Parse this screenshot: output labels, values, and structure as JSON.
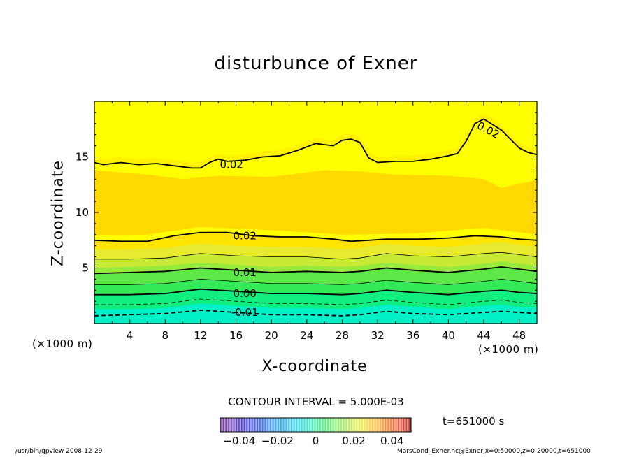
{
  "chart_data": {
    "type": "contour",
    "title": "disturbunce of Exner",
    "xlabel": "X-coordinate",
    "ylabel": "Z-coordinate",
    "x_unit": "(×1000 m)",
    "y_unit": "(×1000 m)",
    "xlim": [
      0,
      50
    ],
    "ylim": [
      0,
      20
    ],
    "x_ticks": [
      4,
      8,
      12,
      16,
      20,
      24,
      28,
      32,
      36,
      40,
      44,
      48
    ],
    "y_ticks": [
      5,
      10,
      15
    ],
    "contour_interval_text": "CONTOUR INTERVAL = 5.000E-03",
    "contour_labels": [
      {
        "text": "0.02",
        "x": 44.5,
        "z": 17.4
      },
      {
        "text": "0.02",
        "x": 15.5,
        "z": 14.3
      },
      {
        "text": "0.02",
        "x": 17.0,
        "z": 7.9
      },
      {
        "text": "0.01",
        "x": 17.0,
        "z": 4.6
      },
      {
        "text": "0.00",
        "x": 17.0,
        "z": 2.7
      },
      {
        "text": "-0.01",
        "x": 17.0,
        "z": 1.0
      }
    ],
    "contours": [
      {
        "level": 0.02,
        "style": "solid-thick",
        "x": [
          0,
          1,
          3,
          5,
          7,
          9,
          11,
          12,
          13,
          14,
          15,
          17,
          19,
          21,
          23,
          24,
          25,
          26,
          27,
          28,
          29,
          30,
          31,
          32,
          34,
          36,
          38,
          40,
          41,
          42,
          43,
          44,
          45,
          46,
          47,
          48,
          49,
          50
        ],
        "z": [
          14.5,
          14.3,
          14.5,
          14.3,
          14.4,
          14.2,
          14.0,
          14.0,
          14.5,
          14.8,
          14.6,
          14.7,
          15.0,
          15.1,
          15.6,
          15.9,
          16.2,
          16.1,
          16.0,
          16.5,
          16.6,
          16.3,
          14.9,
          14.5,
          14.6,
          14.6,
          14.8,
          15.1,
          15.3,
          16.4,
          18.0,
          18.4,
          17.9,
          17.4,
          16.6,
          15.8,
          15.4,
          15.2
        ]
      },
      {
        "level": 0.02,
        "style": "solid-thick",
        "x": [
          0,
          3,
          6,
          9,
          12,
          15,
          18,
          21,
          24,
          27,
          29,
          31,
          33,
          35,
          37,
          40,
          43,
          46,
          48,
          50
        ],
        "z": [
          7.5,
          7.4,
          7.4,
          7.9,
          8.2,
          8.2,
          7.9,
          7.8,
          7.8,
          7.6,
          7.4,
          7.5,
          7.6,
          7.6,
          7.6,
          7.7,
          7.9,
          7.8,
          7.6,
          7.5
        ]
      },
      {
        "level": 0.015,
        "style": "solid-thin",
        "x": [
          0,
          4,
          8,
          12,
          16,
          20,
          24,
          28,
          30,
          33,
          36,
          40,
          44,
          46,
          48,
          50
        ],
        "z": [
          5.8,
          5.8,
          5.9,
          6.3,
          6.1,
          6.0,
          6.0,
          5.8,
          5.9,
          6.3,
          6.1,
          6.0,
          6.3,
          6.4,
          6.2,
          6.0
        ]
      },
      {
        "level": 0.01,
        "style": "solid-thick",
        "x": [
          0,
          4,
          8,
          12,
          16,
          20,
          24,
          28,
          30,
          33,
          36,
          40,
          44,
          46,
          48,
          50
        ],
        "z": [
          4.5,
          4.6,
          4.7,
          5.0,
          4.8,
          4.6,
          4.7,
          4.6,
          4.7,
          5.0,
          4.8,
          4.6,
          4.9,
          5.1,
          4.9,
          4.7
        ]
      },
      {
        "level": 0.005,
        "style": "solid-thin",
        "x": [
          0,
          4,
          8,
          12,
          16,
          20,
          24,
          28,
          30,
          33,
          36,
          40,
          44,
          46,
          48,
          50
        ],
        "z": [
          3.5,
          3.5,
          3.6,
          4.0,
          3.8,
          3.6,
          3.6,
          3.5,
          3.6,
          3.9,
          3.7,
          3.5,
          3.8,
          4.0,
          3.8,
          3.6
        ]
      },
      {
        "level": 0.0,
        "style": "solid-thick",
        "x": [
          0,
          4,
          8,
          12,
          16,
          20,
          24,
          28,
          30,
          33,
          36,
          40,
          44,
          46,
          48,
          50
        ],
        "z": [
          2.6,
          2.6,
          2.7,
          3.1,
          2.9,
          2.7,
          2.7,
          2.6,
          2.7,
          3.0,
          2.8,
          2.6,
          2.9,
          3.0,
          2.8,
          2.7
        ]
      },
      {
        "level": -0.005,
        "style": "dashed-thin",
        "x": [
          0,
          4,
          8,
          12,
          16,
          20,
          24,
          28,
          30,
          33,
          36,
          40,
          44,
          46,
          48,
          50
        ],
        "z": [
          1.7,
          1.7,
          1.8,
          2.2,
          2.0,
          1.8,
          1.8,
          1.7,
          1.8,
          2.1,
          1.9,
          1.7,
          2.0,
          2.1,
          1.9,
          1.8
        ]
      },
      {
        "level": -0.01,
        "style": "dashed-thick",
        "x": [
          0,
          4,
          8,
          12,
          16,
          20,
          24,
          28,
          30,
          33,
          36,
          40,
          44,
          46,
          48,
          50
        ],
        "z": [
          0.7,
          0.8,
          0.9,
          1.2,
          1.0,
          0.8,
          0.8,
          0.7,
          0.8,
          1.1,
          0.9,
          0.8,
          1.0,
          1.1,
          1.0,
          0.9
        ]
      }
    ],
    "colorbar": {
      "min": -0.05,
      "max": 0.05,
      "tick_values": [
        -0.04,
        -0.02,
        0,
        0.02,
        0.04
      ],
      "tick_labels": [
        "−0.04",
        "−0.02",
        "0",
        "0.02",
        "0.04"
      ]
    },
    "time_label": "t=651000 s",
    "colors": {
      "band_0": "#00f0c8",
      "band_1": "#10ee80",
      "band_2": "#34ea58",
      "band_3": "#5ee848",
      "band_4": "#96ea3c",
      "band_5": "#c8ea34",
      "band_6": "#e8ea30",
      "band_7": "#ffe400",
      "band_8": "#ffff00",
      "band_9": "#ffd900"
    }
  },
  "footer": {
    "left": "/usr/bin/gpview   2008-12-29",
    "right": "MarsCond_Exner.nc@Exner,x=0:50000,z=0:20000,t=651000"
  }
}
